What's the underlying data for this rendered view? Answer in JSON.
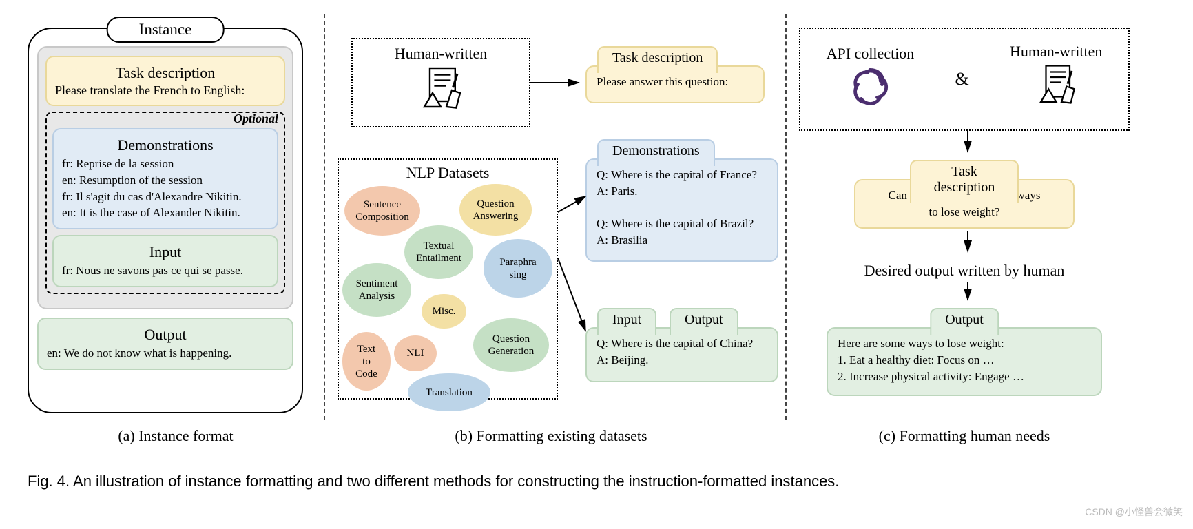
{
  "panelA": {
    "instance_label": "Instance",
    "task_title": "Task description",
    "task_content": "Please translate the French to English:",
    "optional_label": "Optional",
    "demo_title": "Demonstrations",
    "demo_lines": "fr: Reprise de la session\nen: Resumption of the session\nfr: Il s'agit du cas d'Alexandre Nikitin.\nen: It is the case of Alexander Nikitin.",
    "input_title": "Input",
    "input_content": "fr: Nous ne savons pas ce qui se passe.",
    "output_title": "Output",
    "output_content": "en: We do not know what is happening.",
    "caption": "(a) Instance format"
  },
  "panelB": {
    "human_written": "Human-written",
    "nlp_title": "NLP  Datasets",
    "bubbles": {
      "sent_comp": "Sentence\nComposition",
      "qa": "Question\nAnswering",
      "textual": "Textual\nEntailment",
      "paraphrasing": "Paraphra\nsing",
      "sentiment": "Sentiment\nAnalysis",
      "misc": "Misc.",
      "text_to_code": "Text\nto\nCode",
      "nli": "NLI",
      "qg": "Question\nGeneration",
      "translation": "Translation"
    },
    "task_tab": "Task description",
    "task_content": "Please answer this question:",
    "demo_tab": "Demonstrations",
    "demo_content": "Q: Where is the capital of France?\nA: Paris.\n\nQ: Where is the capital of Brazil?\nA: Brasilia",
    "input_tab": "Input",
    "output_tab": "Output",
    "io_content": "Q: Where is the capital of China?\nA: Beijing.",
    "caption": "(b) Formatting existing datasets"
  },
  "panelC": {
    "api_label": "API collection",
    "human_label": "Human-written",
    "amp": "&",
    "task_tab": "Task description",
    "task_content": "Can you recommend some ways\nto lose weight?",
    "middle_text": "Desired output written by human",
    "output_tab": "Output",
    "output_content": "Here are some ways to lose weight:\n1. Eat a healthy diet: Focus on …\n2. Increase physical activity: Engage …",
    "caption": "(c) Formatting human needs"
  },
  "figCaption": "Fig. 4. An illustration of instance formatting and two different methods for constructing the instruction-formatted instances.",
  "watermark": "CSDN @小怪兽会微笑",
  "colors": {
    "yellow_bg": "#fdf3d5",
    "yellow_border": "#e9d89a",
    "blue_bg": "#e1ebf5",
    "blue_border": "#b9cee4",
    "green_bg": "#e2efe2",
    "green_border": "#bcd6bc",
    "gray_bg": "#e8e8e8",
    "gray_border": "#c8c8c8",
    "bubble_orange": "#f3c8ad",
    "bubble_yellow": "#f3e0a4",
    "bubble_green": "#c5e0c5",
    "bubble_blue": "#bcd4e8",
    "openai": "#4b2e6f"
  }
}
